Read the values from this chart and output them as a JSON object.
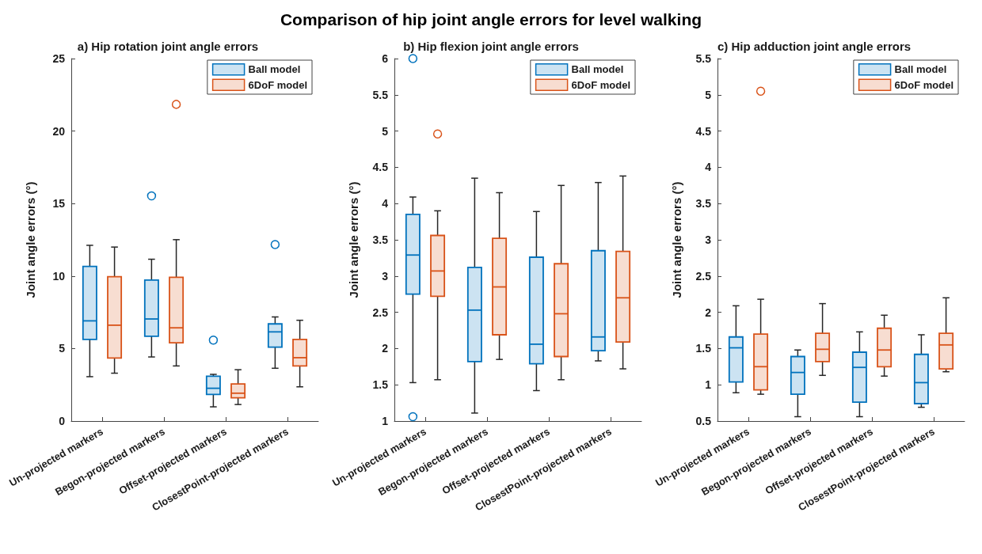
{
  "chart_data": [
    {
      "type": "box",
      "subtitle": "a) Hip rotation joint angle errors",
      "ylabel": "Joint angle errors (°)",
      "categories": [
        "Un-projected markers",
        "Begon-projected markers",
        "Offset-projected markers",
        "ClosestPoint-projected markers"
      ],
      "ylim": [
        0,
        25
      ],
      "yticks": [
        0,
        5,
        10,
        15,
        20,
        25
      ],
      "legend": "top right",
      "series": [
        {
          "name": "Ball model",
          "color": "#0072bd",
          "boxes": [
            {
              "low": 3.06,
              "q1": 5.63,
              "median": 6.91,
              "q3": 10.66,
              "high": 12.12
            },
            {
              "low": 4.42,
              "q1": 5.85,
              "median": 7.04,
              "q3": 9.72,
              "high": 11.16,
              "outliers": [
                15.53
              ]
            },
            {
              "low": 0.98,
              "q1": 1.83,
              "median": 2.26,
              "q3": 3.09,
              "high": 3.22,
              "outliers": [
                5.58
              ]
            },
            {
              "low": 3.64,
              "q1": 5.1,
              "median": 6.15,
              "q3": 6.7,
              "high": 7.18,
              "outliers": [
                12.17
              ]
            }
          ]
        },
        {
          "name": "6DoF model",
          "color": "#d95319",
          "boxes": [
            {
              "low": 3.3,
              "q1": 4.35,
              "median": 6.61,
              "q3": 9.95,
              "high": 12.0
            },
            {
              "low": 3.8,
              "q1": 5.4,
              "median": 6.43,
              "q3": 9.91,
              "high": 12.51,
              "outliers": [
                21.84
              ]
            },
            {
              "low": 1.14,
              "q1": 1.6,
              "median": 1.92,
              "q3": 2.56,
              "high": 3.54
            },
            {
              "low": 2.36,
              "q1": 3.8,
              "median": 4.37,
              "q3": 5.63,
              "high": 6.95
            }
          ]
        }
      ]
    },
    {
      "type": "box",
      "title": "Comparison of hip joint angle errors for level walking",
      "subtitle": "b) Hip flexion joint angle errors",
      "ylabel": "Joint angle errors (°)",
      "categories": [
        "Un-projected markers",
        "Begon-projected markers",
        "Offset-projected markers",
        "ClosestPoint-projected markers"
      ],
      "ylim": [
        1,
        6
      ],
      "yticks": [
        1,
        1.5,
        2,
        2.5,
        3,
        3.5,
        4,
        4.5,
        5,
        5.5,
        6
      ],
      "legend": "top right",
      "series": [
        {
          "name": "Ball model",
          "color": "#0072bd",
          "boxes": [
            {
              "low": 1.53,
              "q1": 2.75,
              "median": 3.29,
              "q3": 3.85,
              "high": 4.09,
              "outliers": [
                6.0,
                1.06
              ]
            },
            {
              "low": 1.11,
              "q1": 1.82,
              "median": 2.53,
              "q3": 3.12,
              "high": 4.35
            },
            {
              "low": 1.42,
              "q1": 1.79,
              "median": 2.06,
              "q3": 3.26,
              "high": 3.89
            },
            {
              "low": 1.83,
              "q1": 1.97,
              "median": 2.16,
              "q3": 3.35,
              "high": 4.29
            }
          ]
        },
        {
          "name": "6DoF model",
          "color": "#d95319",
          "boxes": [
            {
              "low": 1.57,
              "q1": 2.72,
              "median": 3.07,
              "q3": 3.56,
              "high": 3.9,
              "outliers": [
                4.96
              ]
            },
            {
              "low": 1.85,
              "q1": 2.19,
              "median": 2.85,
              "q3": 3.52,
              "high": 4.15
            },
            {
              "low": 1.57,
              "q1": 1.89,
              "median": 2.48,
              "q3": 3.17,
              "high": 4.25
            },
            {
              "low": 1.72,
              "q1": 2.09,
              "median": 2.7,
              "q3": 3.34,
              "high": 4.38
            }
          ]
        }
      ]
    },
    {
      "type": "box",
      "subtitle": "c) Hip adduction joint angle errors",
      "ylabel": "Joint angle errors (°)",
      "categories": [
        "Un-projected markers",
        "Begon-projected markers",
        "Offset-projected markers",
        "ClosestPoint-projected markers"
      ],
      "ylim": [
        0.5,
        5.5
      ],
      "yticks": [
        0.5,
        1,
        1.5,
        2,
        2.5,
        3,
        3.5,
        4,
        4.5,
        5,
        5.5
      ],
      "legend": "top right",
      "series": [
        {
          "name": "Ball model",
          "color": "#0072bd",
          "boxes": [
            {
              "low": 0.89,
              "q1": 1.04,
              "median": 1.51,
              "q3": 1.66,
              "high": 2.09
            },
            {
              "low": 0.56,
              "q1": 0.87,
              "median": 1.17,
              "q3": 1.39,
              "high": 1.48
            },
            {
              "low": 0.56,
              "q1": 0.76,
              "median": 1.24,
              "q3": 1.45,
              "high": 1.73
            },
            {
              "low": 0.69,
              "q1": 0.74,
              "median": 1.03,
              "q3": 1.42,
              "high": 1.69
            }
          ]
        },
        {
          "name": "6DoF model",
          "color": "#d95319",
          "boxes": [
            {
              "low": 0.87,
              "q1": 0.93,
              "median": 1.25,
              "q3": 1.7,
              "high": 2.18,
              "outliers": [
                5.05
              ]
            },
            {
              "low": 1.13,
              "q1": 1.32,
              "median": 1.49,
              "q3": 1.71,
              "high": 2.12
            },
            {
              "low": 1.12,
              "q1": 1.25,
              "median": 1.48,
              "q3": 1.78,
              "high": 1.96
            },
            {
              "low": 1.18,
              "q1": 1.22,
              "median": 1.55,
              "q3": 1.71,
              "high": 2.2
            }
          ]
        }
      ]
    }
  ]
}
